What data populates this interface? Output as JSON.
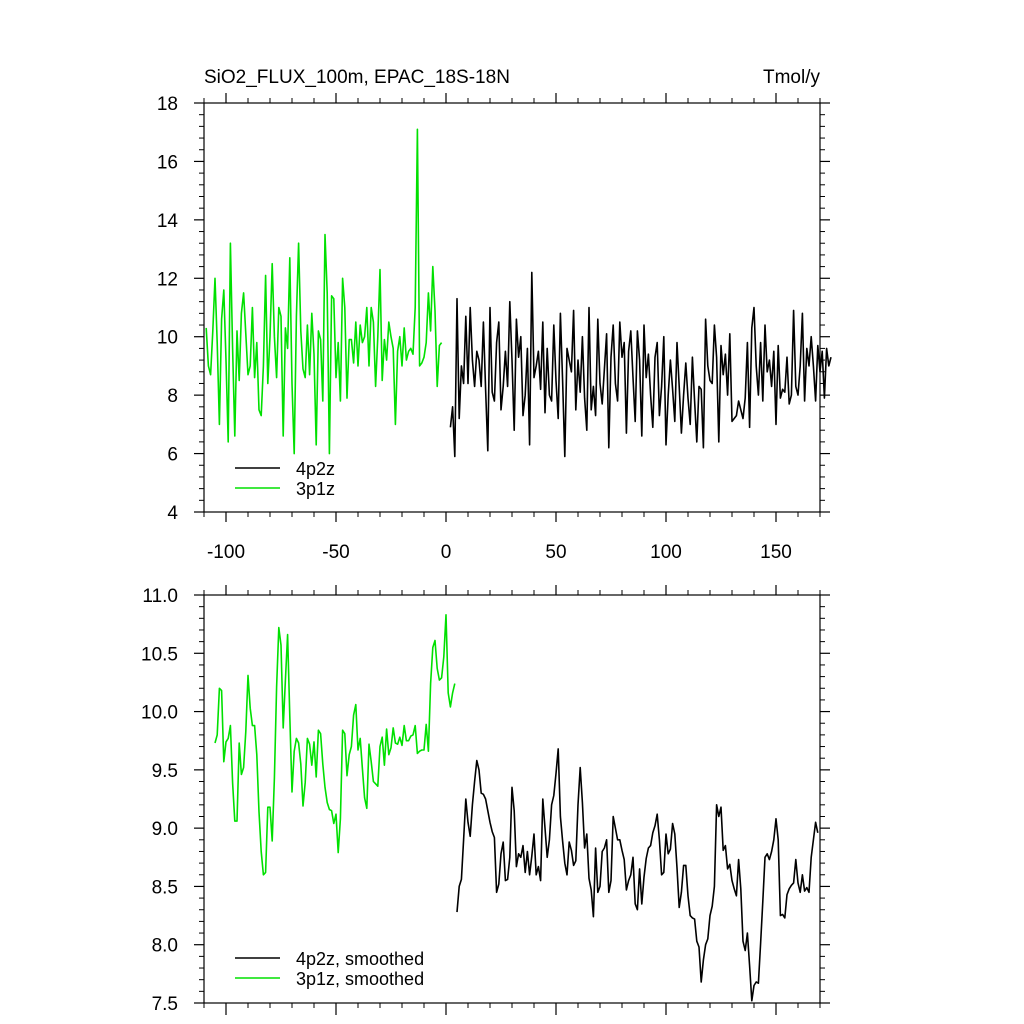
{
  "title_left": "SiO2_FLUX_100m, EPAC_18S-18N",
  "title_right": "Tmol/y",
  "colors": {
    "black_series": "#000000",
    "green_series": "#00e000",
    "axis": "#000000"
  },
  "chart_data": [
    {
      "type": "line",
      "xlim": [
        -110,
        170
      ],
      "ylim": [
        4,
        18
      ],
      "xticks": [
        -100,
        -50,
        0,
        50,
        100,
        150
      ],
      "xtick_labels": [
        "-100",
        "-50",
        "0",
        "50",
        "100",
        "150"
      ],
      "yticks": [
        4,
        6,
        8,
        10,
        12,
        14,
        16,
        18
      ],
      "ytick_labels": [
        "4",
        "6",
        "8",
        "10",
        "12",
        "14",
        "16",
        "18"
      ],
      "legend_position": "bottom-left",
      "series": [
        {
          "name": "4p2z",
          "color": "#000000",
          "x_start": 2,
          "x_step": 1,
          "values": [
            6.9,
            7.6,
            5.9,
            11.3,
            7.2,
            9.0,
            8.4,
            10.7,
            8.4,
            11.0,
            9.2,
            8.3,
            9.5,
            9.2,
            8.3,
            10.5,
            8.2,
            6.1,
            11.0,
            8.1,
            7.8,
            9.8,
            10.5,
            7.5,
            8.3,
            9.5,
            8.3,
            11.2,
            9.2,
            6.8,
            10.6,
            9.3,
            10.0,
            7.3,
            8.0,
            9.6,
            6.3,
            12.2,
            8.6,
            9.0,
            9.5,
            8.2,
            10.5,
            7.4,
            9.6,
            8.0,
            7.8,
            10.4,
            8.5,
            7.2,
            10.8,
            8.5,
            5.9,
            9.6,
            9.2,
            8.8,
            10.9,
            7.5,
            9.2,
            8.1,
            10.0,
            7.9,
            6.8,
            11.0,
            7.5,
            8.3,
            7.3,
            10.6,
            8.4,
            7.7,
            8.9,
            10.1,
            6.2,
            9.3,
            10.4,
            8.4,
            7.8,
            10.5,
            9.3,
            9.8,
            6.7,
            9.5,
            10.2,
            8.6,
            7.1,
            10.2,
            9.2,
            6.6,
            10.4,
            8.6,
            9.4,
            8.0,
            6.9,
            9.3,
            9.8,
            7.3,
            8.3,
            10.0,
            6.3,
            8.0,
            9.2,
            8.2,
            7.1,
            9.8,
            8.3,
            6.7,
            8.0,
            9.1,
            7.9,
            7.0,
            9.3,
            7.8,
            6.4,
            8.3,
            8.2,
            6.2,
            10.6,
            9.0,
            8.5,
            8.4,
            10.4,
            9.3,
            6.4,
            9.7,
            8.7,
            9.4,
            8.0,
            10.1,
            7.1,
            7.2,
            7.3,
            7.8,
            7.5,
            7.2,
            7.9,
            9.8,
            6.9,
            10.3,
            11.0,
            9.0,
            8.0,
            9.8,
            7.8,
            10.4,
            8.8,
            9.2,
            8.3,
            9.5,
            7.0,
            9.7,
            7.9,
            8.2,
            8.1,
            9.3,
            7.7,
            8.0,
            10.9,
            8.3,
            8.0,
            9.0,
            10.8,
            7.8,
            9.6,
            9.0,
            10.0,
            9.0,
            7.8,
            9.7,
            8.8,
            9.5,
            7.9,
            9.6,
            9.0,
            9.3
          ]
        },
        {
          "name": "3p1z",
          "color": "#00e000",
          "x_start": -109,
          "x_step": 1,
          "values": [
            10.3,
            9.0,
            8.7,
            10.2,
            12.0,
            9.8,
            7.0,
            10.6,
            11.6,
            9.2,
            6.4,
            13.2,
            9.6,
            6.6,
            10.2,
            8.5,
            10.8,
            11.5,
            10.1,
            8.7,
            9.0,
            11.0,
            8.6,
            9.8,
            7.5,
            7.3,
            9.0,
            12.1,
            8.4,
            10.0,
            12.5,
            10.0,
            8.6,
            11.0,
            10.7,
            6.6,
            10.3,
            9.6,
            12.7,
            8.4,
            6.0,
            10.7,
            13.2,
            10.2,
            8.9,
            8.6,
            10.4,
            8.7,
            10.8,
            9.4,
            6.3,
            10.2,
            9.9,
            7.8,
            13.5,
            11.5,
            6.0,
            11.4,
            11.3,
            8.6,
            9.8,
            7.8,
            12.0,
            11.0,
            7.9,
            9.9,
            9.9,
            9.1,
            10.5,
            9.0,
            10.4,
            9.8,
            10.0,
            11.0,
            9.0,
            11.0,
            10.5,
            8.3,
            10.0,
            12.3,
            8.5,
            9.9,
            9.2,
            10.5,
            10.0,
            9.6,
            7.0,
            9.5,
            10.0,
            9.0,
            10.3,
            9.2,
            9.5,
            9.6,
            9.4,
            11.0,
            17.1,
            9.0,
            9.1,
            9.3,
            9.8,
            11.5,
            10.2,
            12.4,
            10.9,
            8.3,
            9.7,
            9.8
          ]
        }
      ]
    },
    {
      "type": "line",
      "xlim": [
        -110,
        170
      ],
      "ylim": [
        7.5,
        11.0
      ],
      "xticks": [
        -100,
        -50,
        0,
        50,
        100,
        150
      ],
      "yticks": [
        7.5,
        8.0,
        8.5,
        9.0,
        9.5,
        10.0,
        10.5,
        11.0
      ],
      "ytick_labels": [
        "7.5",
        "8.0",
        "8.5",
        "9.0",
        "9.5",
        "10.0",
        "10.5",
        "11.0"
      ],
      "legend_position": "bottom-left",
      "series": [
        {
          "name": "4p2z, smoothed",
          "color": "#000000",
          "x_start": 5,
          "x_step": 1,
          "values": [
            8.28,
            8.5,
            8.56,
            8.9,
            9.25,
            9.05,
            8.93,
            9.2,
            9.4,
            9.58,
            9.5,
            9.3,
            9.29,
            9.25,
            9.15,
            9.05,
            8.97,
            8.92,
            8.45,
            8.52,
            8.78,
            8.88,
            8.55,
            8.56,
            8.75,
            9.35,
            9.15,
            8.67,
            8.78,
            8.75,
            8.85,
            8.62,
            8.8,
            8.6,
            8.76,
            8.95,
            8.6,
            8.67,
            8.55,
            9.25,
            9.0,
            8.75,
            8.9,
            9.2,
            9.28,
            9.47,
            9.68,
            9.1,
            8.89,
            8.7,
            8.6,
            8.88,
            8.81,
            8.68,
            8.72,
            9.2,
            9.52,
            9.22,
            8.83,
            8.95,
            8.57,
            8.47,
            8.24,
            8.83,
            8.45,
            8.5,
            8.8,
            8.83,
            8.9,
            8.45,
            8.55,
            9.1,
            9.0,
            8.9,
            8.9,
            8.81,
            8.73,
            8.47,
            8.55,
            8.6,
            8.75,
            8.35,
            8.3,
            8.65,
            8.35,
            8.58,
            8.74,
            8.83,
            8.85,
            8.96,
            9.02,
            9.12,
            8.9,
            8.6,
            8.62,
            8.95,
            8.78,
            8.82,
            9.04,
            8.95,
            8.66,
            8.32,
            8.45,
            8.68,
            8.68,
            8.42,
            8.25,
            8.23,
            8.22,
            8.03,
            7.98,
            7.68,
            7.87,
            8.0,
            8.05,
            8.25,
            8.33,
            8.5,
            9.2,
            9.1,
            9.18,
            8.81,
            8.85,
            8.65,
            8.69,
            8.55,
            8.48,
            8.42,
            8.73,
            8.48,
            8.03,
            7.95,
            8.1,
            7.82,
            7.52,
            7.65,
            7.68,
            7.67,
            8.01,
            8.37,
            8.75,
            8.78,
            8.73,
            8.8,
            8.9,
            9.08,
            8.9,
            8.25,
            8.26,
            8.23,
            8.43,
            8.48,
            8.51,
            8.53,
            8.73,
            8.53,
            8.45,
            8.6,
            8.46,
            8.49,
            8.45,
            8.75,
            8.9,
            9.05,
            8.96
          ]
        },
        {
          "name": "3p1z, smoothed",
          "color": "#00e000",
          "x_start": -105,
          "x_step": 1,
          "values": [
            9.73,
            9.8,
            10.2,
            10.18,
            9.57,
            9.74,
            9.77,
            9.88,
            9.39,
            9.06,
            9.06,
            9.73,
            9.46,
            9.52,
            9.83,
            10.31,
            10.03,
            9.88,
            9.88,
            9.63,
            9.14,
            8.8,
            8.6,
            8.62,
            9.18,
            9.18,
            8.89,
            9.43,
            10.21,
            10.72,
            10.57,
            9.86,
            10.27,
            10.66,
            9.96,
            9.31,
            9.66,
            9.77,
            9.73,
            9.55,
            9.19,
            9.39,
            9.77,
            9.72,
            9.54,
            9.74,
            9.44,
            9.84,
            9.81,
            9.55,
            9.35,
            9.22,
            9.16,
            9.15,
            9.04,
            9.12,
            8.79,
            9.08,
            9.84,
            9.81,
            9.45,
            9.63,
            9.7,
            9.97,
            10.06,
            9.67,
            9.77,
            9.51,
            9.26,
            9.17,
            9.72,
            9.57,
            9.4,
            9.38,
            9.36,
            9.7,
            9.78,
            9.54,
            9.85,
            9.63,
            9.69,
            9.86,
            9.73,
            9.72,
            9.78,
            9.71,
            9.88,
            9.75,
            9.75,
            9.79,
            9.8,
            9.88,
            9.64,
            9.66,
            9.67,
            9.67,
            9.89,
            9.66,
            10.24,
            10.55,
            10.61,
            10.37,
            10.27,
            10.29,
            10.47,
            10.83,
            10.16,
            10.04,
            10.16,
            10.24
          ]
        }
      ]
    }
  ]
}
